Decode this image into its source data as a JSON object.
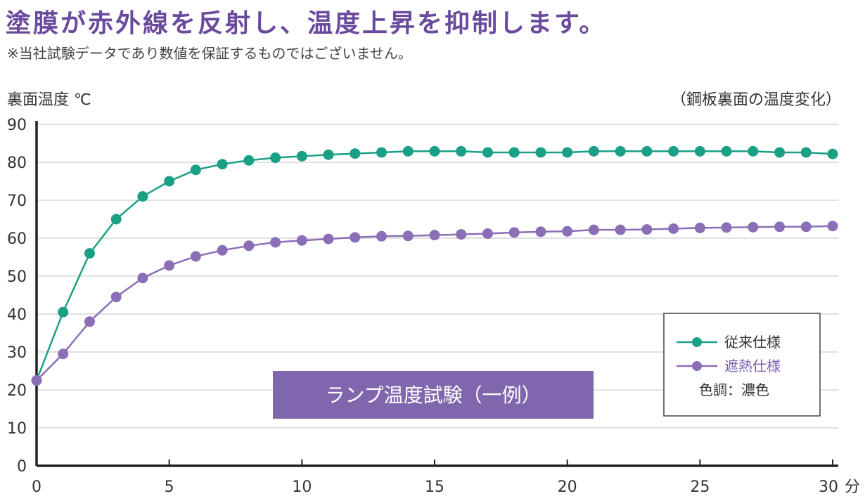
{
  "headline": "塗膜が赤外線を反射し、温度上昇を抑制します。",
  "note": "※当社試験データであり数値を保証するものではございません。",
  "colors": {
    "standard": "#1aa085",
    "heat_shield": "#8a6fb6",
    "badge": "#8067ad",
    "grid": "#cfcfcf"
  },
  "chart_data": {
    "type": "line",
    "ylabel": "裏面温度 ℃",
    "caption": "（鋼板裏面の温度変化）",
    "x_unit": "分",
    "xlim": [
      0,
      30
    ],
    "ylim": [
      0,
      90
    ],
    "x_ticks": [
      "0",
      "5",
      "10",
      "15",
      "20",
      "25",
      "30"
    ],
    "y_ticks": [
      "0",
      "10",
      "20",
      "30",
      "40",
      "50",
      "60",
      "70",
      "80",
      "90"
    ],
    "grid": true,
    "x": [
      0,
      1,
      2,
      3,
      4,
      5,
      6,
      7,
      8,
      9,
      10,
      11,
      12,
      13,
      14,
      15,
      16,
      17,
      18,
      19,
      20,
      21,
      22,
      23,
      24,
      25,
      26,
      27,
      28,
      29,
      30
    ],
    "series": [
      {
        "name": "従来仕様",
        "values": [
          22.5,
          40.5,
          56,
          65,
          71,
          75,
          78,
          79.5,
          80.5,
          81.2,
          81.6,
          82,
          82.3,
          82.6,
          82.9,
          82.9,
          82.9,
          82.6,
          82.6,
          82.6,
          82.6,
          82.9,
          82.9,
          82.9,
          82.9,
          82.9,
          82.9,
          82.9,
          82.6,
          82.6,
          82.2
        ]
      },
      {
        "name": "遮熱仕様",
        "values": [
          22.5,
          29.5,
          38,
          44.5,
          49.5,
          52.8,
          55.2,
          56.8,
          58,
          58.9,
          59.4,
          59.8,
          60.2,
          60.5,
          60.6,
          60.8,
          61,
          61.2,
          61.5,
          61.7,
          61.8,
          62.2,
          62.2,
          62.3,
          62.5,
          62.7,
          62.8,
          62.9,
          63,
          63,
          63.2
        ]
      }
    ],
    "legend": {
      "placement": "bottom-right",
      "note": "色調：濃色"
    },
    "annotation": "ランプ温度試験（一例）"
  }
}
